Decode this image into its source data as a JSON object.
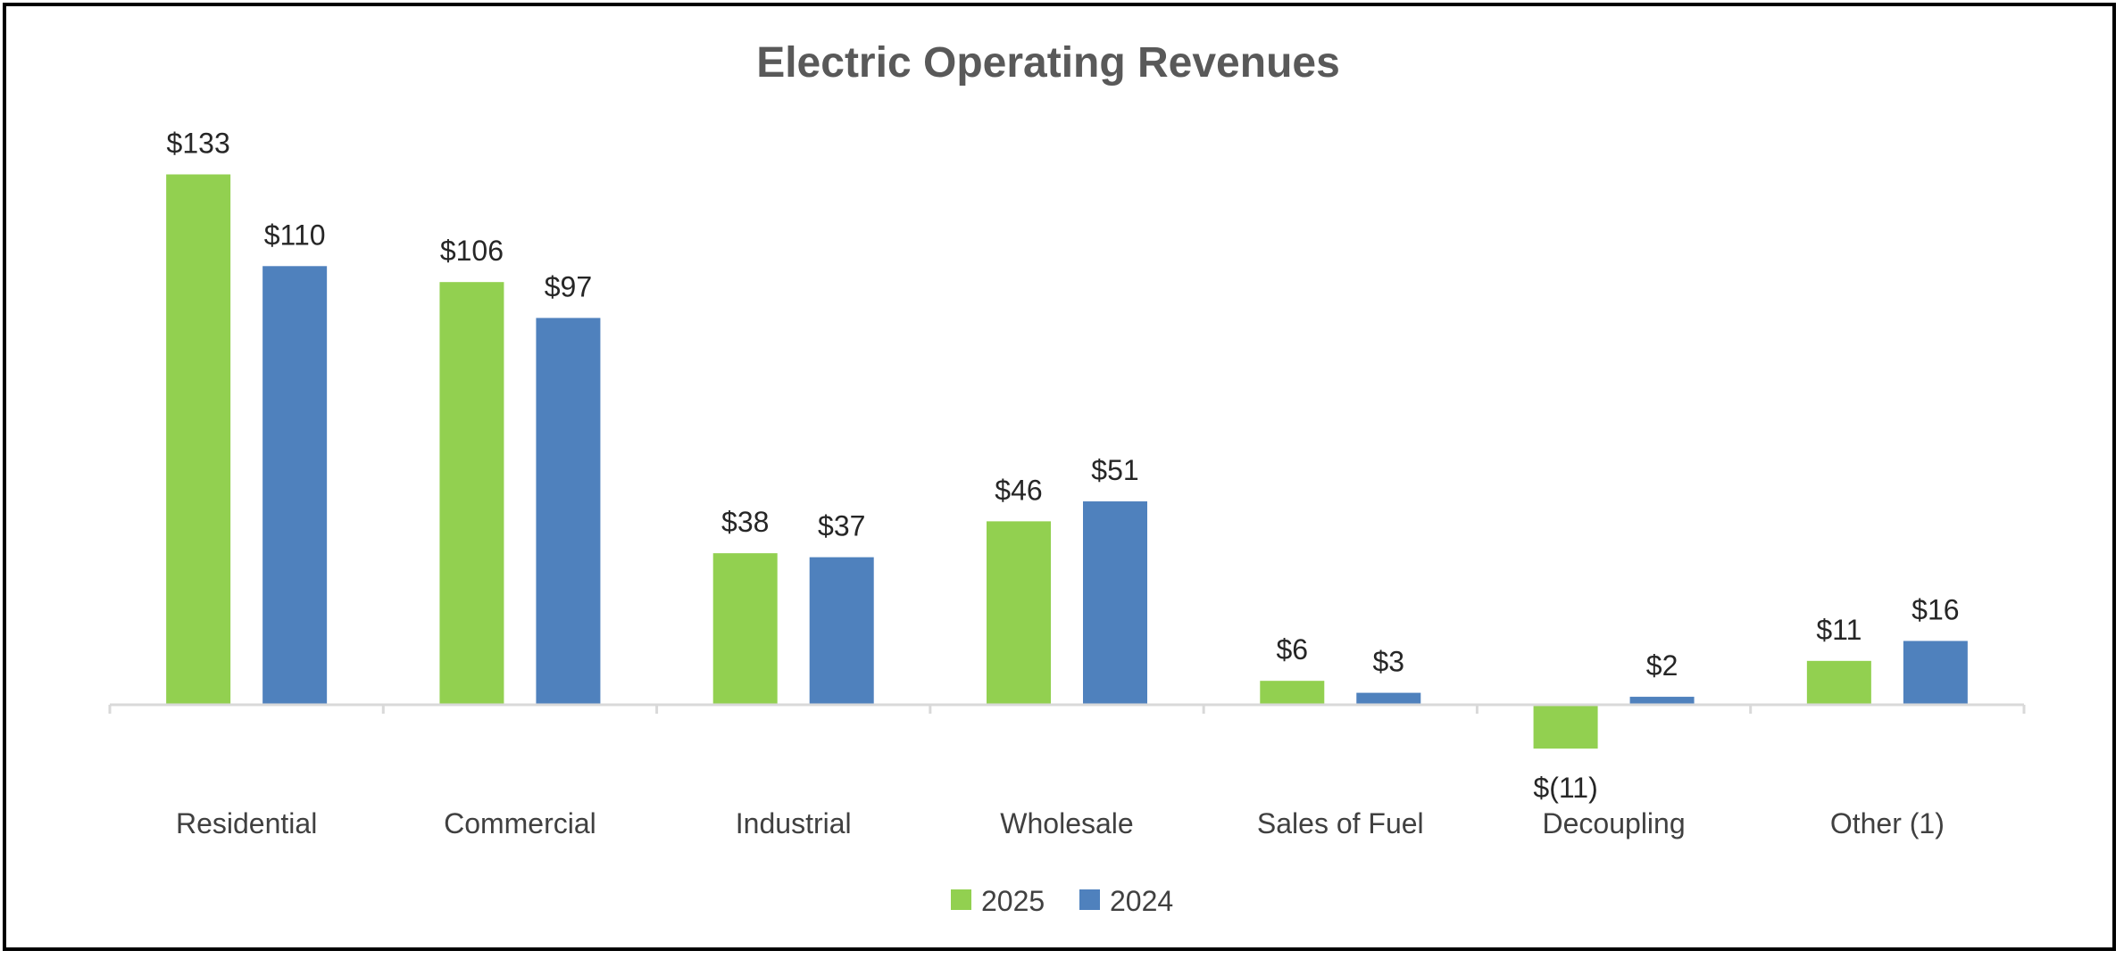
{
  "chart_data": {
    "type": "bar",
    "title": "Electric Operating Revenues",
    "xlabel": "",
    "ylabel": "",
    "grid": false,
    "legend_position": "bottom",
    "categories": [
      "Residential",
      "Commercial",
      "Industrial",
      "Wholesale",
      "Sales of Fuel",
      "Decoupling",
      "Other (1)"
    ],
    "series": [
      {
        "name": "2025",
        "color": "#92D050",
        "values": [
          133,
          106,
          38,
          46,
          6,
          -11,
          11
        ],
        "labels": [
          "$133",
          "$106",
          "$38",
          "$46",
          "$6",
          "$(11)",
          "$11"
        ]
      },
      {
        "name": "2024",
        "color": "#4F81BD",
        "values": [
          110,
          97,
          37,
          51,
          3,
          2,
          16
        ],
        "labels": [
          "$110",
          "$97",
          "$37",
          "$51",
          "$3",
          "$2",
          "$16"
        ]
      }
    ],
    "ylim": [
      -20,
      140
    ]
  }
}
